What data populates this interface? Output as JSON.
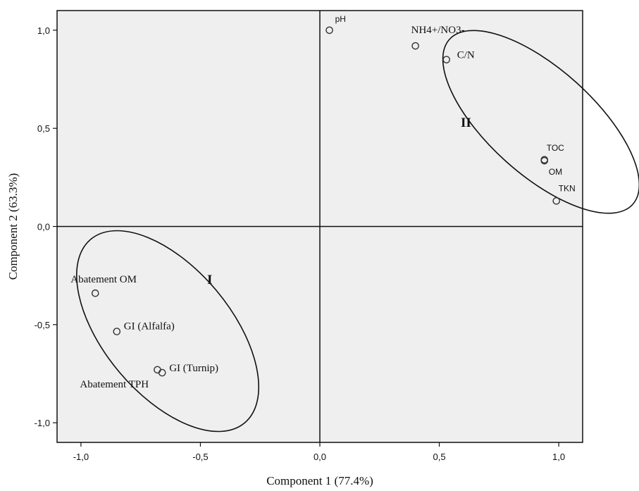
{
  "chart_data": {
    "type": "scatter",
    "title": "",
    "xlabel": "Component 1 (77.4%)",
    "ylabel": "Component 2 (63.3%)",
    "xlim": [
      -1.1,
      1.1
    ],
    "ylim": [
      -1.1,
      1.1
    ],
    "x_ticks": [
      "-1,0",
      "-0,5",
      "0,0",
      "0,5",
      "1,0"
    ],
    "x_tick_values": [
      -1.0,
      -0.5,
      0.0,
      0.5,
      1.0
    ],
    "y_ticks": [
      "1,0",
      "0,5",
      "0,0",
      "-0,5",
      "-1,0"
    ],
    "y_tick_values": [
      1.0,
      0.5,
      0.0,
      -0.5,
      -1.0
    ],
    "grid": false,
    "background_color": "#efefef",
    "reference_lines": {
      "x": 0.0,
      "y": 0.0
    },
    "points": [
      {
        "label": "pH",
        "x": 0.04,
        "y": 1.0
      },
      {
        "label": "NH4+/NO3-",
        "x": 0.4,
        "y": 0.92
      },
      {
        "label": "C/N",
        "x": 0.53,
        "y": 0.85
      },
      {
        "label": "TOC",
        "x": 0.94,
        "y": 0.34
      },
      {
        "label": "OM",
        "x": 0.94,
        "y": 0.335
      },
      {
        "label": "TKN",
        "x": 0.99,
        "y": 0.13
      },
      {
        "label": "Abatement OM",
        "x": -0.94,
        "y": -0.34
      },
      {
        "label": "GI (Alfalfa)",
        "x": -0.85,
        "y": -0.535
      },
      {
        "label": "GI (Turnip)",
        "x": -0.66,
        "y": -0.745
      },
      {
        "label": "Abatement TPH",
        "x": -0.68,
        "y": -0.73
      }
    ],
    "groups": [
      {
        "label": "I",
        "members": [
          "Abatement OM",
          "GI (Alfalfa)",
          "GI (Turnip)",
          "Abatement TPH"
        ]
      },
      {
        "label": "II",
        "members": [
          "NH4+/NO3-",
          "C/N",
          "TOC",
          "OM",
          "TKN"
        ]
      }
    ]
  }
}
